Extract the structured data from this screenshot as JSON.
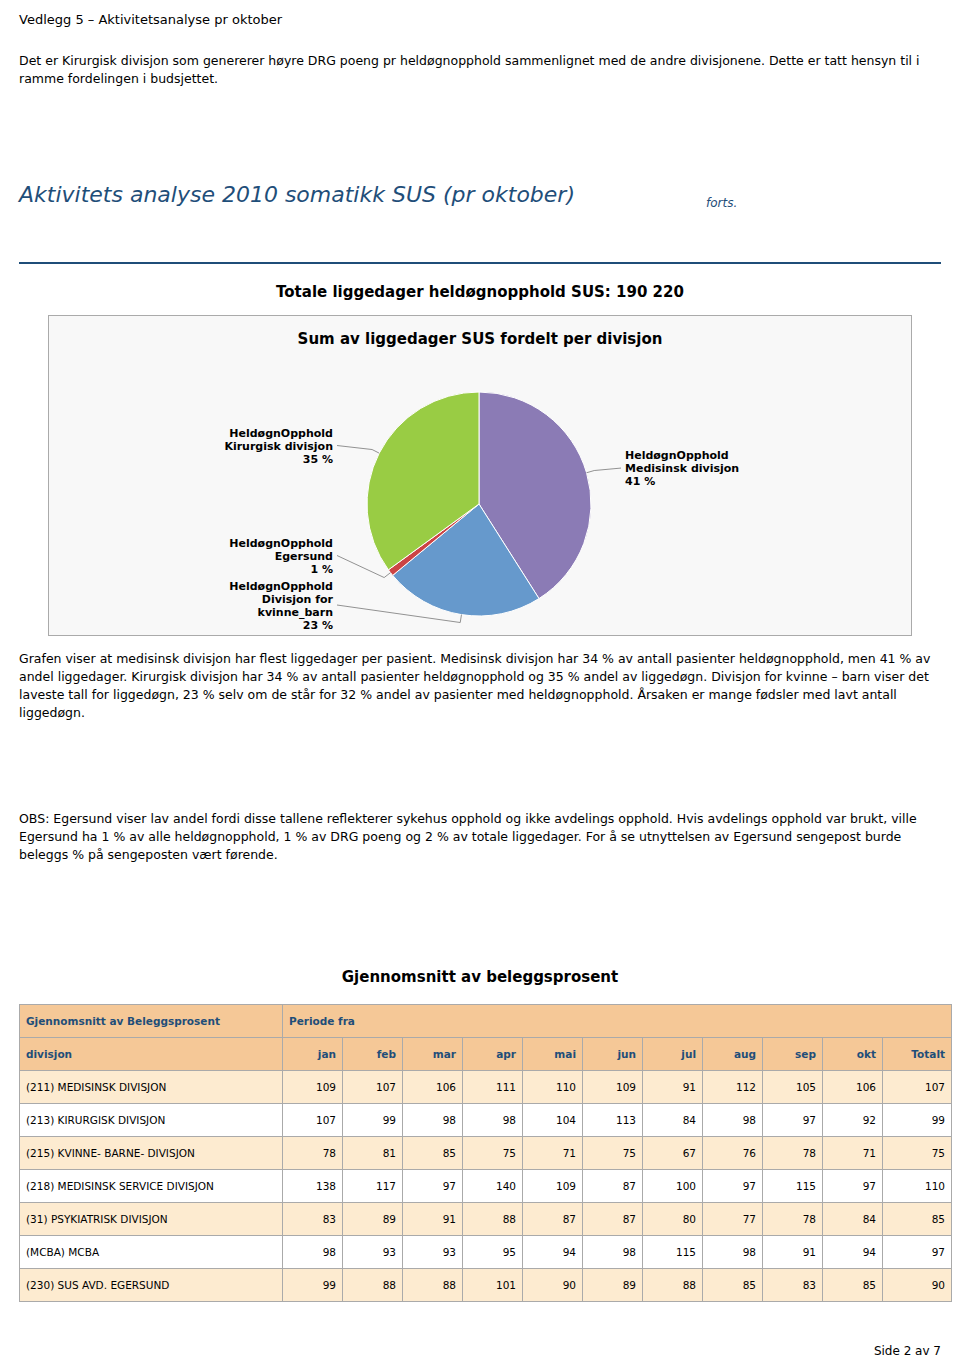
{
  "page_header": "Vedlegg 5 – Aktivitetsanalyse pr oktober",
  "paragraph1": "Det er Kirurgisk divisjon som genererer høyre DRG poeng pr heldøgnopphold sammenlignet med de andre divisjonene. Dette er tatt hensyn til i ramme fordelingen i budsjettet.",
  "section_title": "Aktivitets analyse 2010 somatikk SUS (pr oktober)",
  "section_subtitle": "forts.",
  "header_color": "#1F4E79",
  "text_color": "#000000",
  "bg_color": "#FFFFFF",
  "chart_heading": "Totale liggedager heldøgnopphold SUS: 190 220",
  "chart_data": {
    "type": "pie",
    "title": "Sum av liggedager SUS fordelt per divisjon",
    "categories": [
      "HeldøgnOpphold\nMedisinsk divisjon",
      "HeldøgnOpphold\nDivisjon for\nkvinne_barn",
      "HeldøgnOpphold\nEgersund",
      "HeldøgnOpphold\nKirurgisk divisjon"
    ],
    "values": [
      41,
      23,
      1,
      35
    ],
    "value_labels": [
      "41 %",
      "23 %",
      "1 %",
      "35 %"
    ],
    "colors": [
      "#8B7BB5",
      "#6699CC",
      "#CC4444",
      "#99CC44"
    ],
    "data_labels": true
  },
  "paragraph2": "Grafen viser at medisinsk divisjon har flest liggedager per pasient. Medisinsk divisjon har 34 % av antall pasienter heldøgnopphold, men 41 % av andel liggedager.  Kirurgisk divisjon har 34 % av antall pasienter heldøgnopphold og 35 % andel av liggedøgn.  Divisjon for kvinne – barn viser det laveste tall for liggedøgn, 23 % selv om de står for 32 % andel av pasienter med heldøgnopphold. Årsaken er mange fødsler med lavt antall liggedøgn.",
  "paragraph3": "OBS: Egersund viser lav andel fordi disse tallene reflekterer sykehus opphold og ikke avdelings opphold. Hvis avdelings opphold var brukt, ville Egersund ha 1 % av alle heldøgnopphold, 1 % av DRG poeng og 2 % av totale liggedager.  For å se utnyttelsen av Egersund sengepost burde beleggs % på sengeposten vært førende.",
  "table": {
    "title": "Gjennomsnitt av beleggsprosent",
    "header_row1": [
      "Gjennomsnitt av Beleggsprosent",
      "Periode fra"
    ],
    "columns": [
      "divisjon",
      "jan",
      "feb",
      "mar",
      "apr",
      "mai",
      "jun",
      "jul",
      "aug",
      "sep",
      "okt",
      "Totalt"
    ],
    "rows": [
      [
        "(211) MEDISINSK DIVISJON",
        "109",
        "107",
        "106",
        "111",
        "110",
        "109",
        "91",
        "112",
        "105",
        "106",
        "107"
      ],
      [
        "(213) KIRURGISK DIVISJON",
        "107",
        "99",
        "98",
        "98",
        "104",
        "113",
        "84",
        "98",
        "97",
        "92",
        "99"
      ],
      [
        "(215) KVINNE- BARNE- DIVISJON",
        "78",
        "81",
        "85",
        "75",
        "71",
        "75",
        "67",
        "76",
        "78",
        "71",
        "75"
      ],
      [
        "(218) MEDISINSK SERVICE DIVISJON",
        "138",
        "117",
        "97",
        "140",
        "109",
        "87",
        "100",
        "97",
        "115",
        "97",
        "110"
      ],
      [
        "(31) PSYKIATRISK DIVISJON",
        "83",
        "89",
        "91",
        "88",
        "87",
        "87",
        "80",
        "77",
        "78",
        "84",
        "85"
      ],
      [
        "(MCBA) MCBA",
        "98",
        "93",
        "93",
        "95",
        "94",
        "98",
        "115",
        "98",
        "91",
        "94",
        "97"
      ],
      [
        "(230) SUS AVD. EGERSUND",
        "99",
        "88",
        "88",
        "101",
        "90",
        "89",
        "88",
        "85",
        "83",
        "85",
        "90"
      ]
    ],
    "header_bg": "#F5C897",
    "row_bg_even": "#FDEBD0",
    "row_bg_odd": "#FFFFFF"
  },
  "page_footer": "Side 2 av 7"
}
